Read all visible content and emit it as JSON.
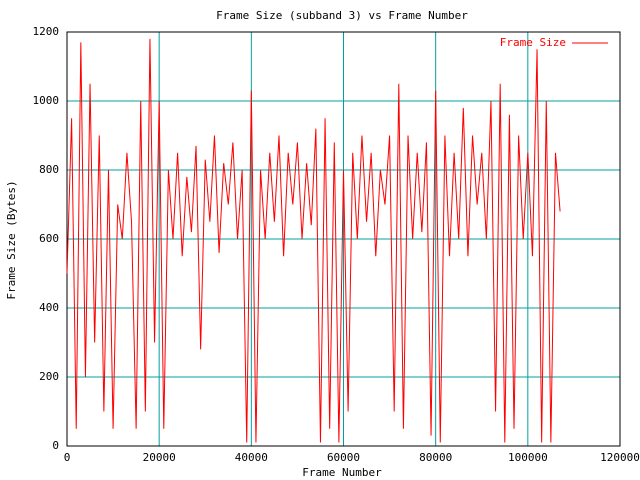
{
  "chart_data": {
    "type": "line",
    "title": "Frame Size (subband 3) vs Frame Number",
    "x_label": "Frame Number",
    "y_label": "Frame Size (Bytes)",
    "x": [
      0,
      1000,
      2000,
      3000,
      4000,
      5000,
      6000,
      7000,
      8000,
      9000,
      10000,
      11000,
      12000,
      13000,
      14000,
      15000,
      16000,
      17000,
      18000,
      19000,
      20000,
      21000,
      22000,
      23000,
      24000,
      25000,
      26000,
      27000,
      28000,
      29000,
      30000,
      31000,
      32000,
      33000,
      34000,
      35000,
      36000,
      37000,
      38000,
      39000,
      40000,
      41000,
      42000,
      43000,
      44000,
      45000,
      46000,
      47000,
      48000,
      49000,
      50000,
      51000,
      52000,
      53000,
      54000,
      55000,
      56000,
      57000,
      58000,
      59000,
      60000,
      61000,
      62000,
      63000,
      64000,
      65000,
      66000,
      67000,
      68000,
      69000,
      70000,
      71000,
      72000,
      73000,
      74000,
      75000,
      76000,
      77000,
      78000,
      79000,
      80000,
      81000,
      82000,
      83000,
      84000,
      85000,
      86000,
      87000,
      88000,
      89000,
      90000,
      91000,
      92000,
      93000,
      94000,
      95000,
      96000,
      97000,
      98000,
      99000,
      100000,
      101000,
      102000,
      103000,
      104000,
      105000,
      106000,
      107000
    ],
    "series": [
      {
        "name": "Frame Size",
        "color": "#ff0000",
        "values": [
          500,
          950,
          50,
          1170,
          200,
          1050,
          300,
          900,
          100,
          800,
          50,
          700,
          600,
          850,
          650,
          50,
          1000,
          100,
          1180,
          300,
          1000,
          50,
          800,
          600,
          850,
          550,
          780,
          620,
          870,
          280,
          830,
          650,
          900,
          560,
          820,
          700,
          880,
          600,
          800,
          10,
          1030,
          10,
          800,
          600,
          850,
          650,
          900,
          550,
          850,
          700,
          880,
          600,
          820,
          640,
          920,
          10,
          950,
          50,
          880,
          10,
          800,
          100,
          850,
          600,
          900,
          650,
          850,
          550,
          800,
          700,
          900,
          100,
          1050,
          50,
          900,
          600,
          850,
          620,
          880,
          30,
          1030,
          10,
          900,
          550,
          850,
          600,
          980,
          550,
          900,
          700,
          850,
          600,
          1000,
          100,
          1050,
          10,
          960,
          50,
          900,
          600,
          850,
          550,
          1150,
          10,
          1000,
          10,
          850,
          680
        ]
      }
    ],
    "xlim": [
      0,
      120000
    ],
    "xticks": [
      0,
      20000,
      40000,
      60000,
      80000,
      100000,
      120000
    ],
    "ylim": [
      0,
      1200
    ],
    "yticks": [
      0,
      200,
      400,
      600,
      800,
      1000,
      1200
    ],
    "grid": true,
    "grid_color": "#00a0a0",
    "legend": "top-right"
  }
}
